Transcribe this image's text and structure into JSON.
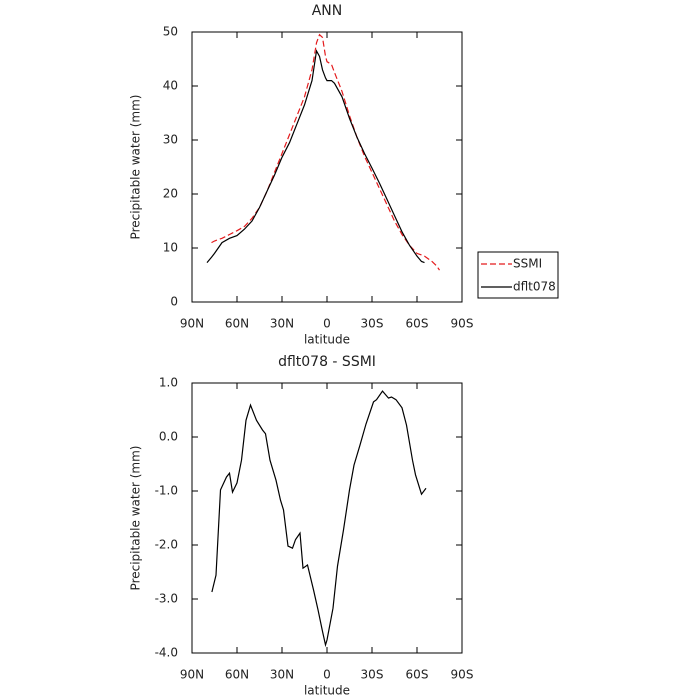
{
  "chart_data": [
    {
      "type": "line",
      "title": "ANN",
      "xlabel": "latitude",
      "ylabel": "Precipitable water (mm)",
      "x": [
        80,
        77,
        75,
        70,
        65,
        60,
        55,
        50,
        45,
        40,
        35,
        30,
        25,
        20,
        15,
        10,
        7,
        5,
        3,
        1,
        0,
        -3,
        -5,
        -10,
        -15,
        -20,
        -25,
        -30,
        -35,
        -40,
        -45,
        -50,
        -55,
        -60,
        -63,
        -65,
        -70,
        -73,
        -75
      ],
      "series": [
        {
          "name": "SSMI",
          "color": "#e41a1c",
          "linestyle": "dashed",
          "values": [
            null,
            11,
            11.3,
            11.8,
            12.5,
            13.2,
            14,
            15.5,
            17.5,
            20.5,
            24,
            27.5,
            31,
            34.5,
            38,
            43,
            48,
            49.5,
            49,
            45.5,
            44.5,
            44,
            42.5,
            39,
            34.5,
            30.5,
            27,
            24,
            21,
            18,
            15,
            12.5,
            10.5,
            9,
            8.7,
            8.5,
            7.5,
            6.7,
            5.9
          ]
        },
        {
          "name": "dflt078",
          "color": "#000000",
          "linestyle": "solid",
          "values": [
            7.3,
            8.3,
            9,
            11,
            11.8,
            12.3,
            13.5,
            15,
            17.5,
            20.5,
            23.5,
            26.8,
            29.5,
            33,
            36.5,
            41,
            46.5,
            45.5,
            43,
            41.5,
            41,
            41,
            40.5,
            38,
            34,
            30.5,
            27.5,
            24.8,
            22,
            19,
            16,
            13,
            10.5,
            8.5,
            7.5,
            7.3,
            null,
            null,
            null
          ]
        }
      ],
      "xlim": [
        90,
        -90
      ],
      "xticks": [
        {
          "value": 90,
          "label": "90N"
        },
        {
          "value": 60,
          "label": "60N"
        },
        {
          "value": 30,
          "label": "30N"
        },
        0,
        {
          "value": -30,
          "label": "30S"
        },
        {
          "value": -60,
          "label": "60S"
        },
        {
          "value": -90,
          "label": "90S"
        }
      ],
      "ylim": [
        0,
        50
      ],
      "yticks": [
        0,
        10,
        20,
        30,
        40,
        50
      ],
      "legend": "right"
    },
    {
      "type": "line",
      "title": "dflt078 - SSMI",
      "xlabel": "latitude",
      "ylabel": "Precipitable water (mm)",
      "x": [
        76.7,
        74,
        71,
        67,
        65,
        63,
        60,
        57,
        54,
        51,
        47,
        43,
        41,
        38,
        34,
        31,
        29,
        26,
        23,
        21,
        18,
        16,
        13,
        9,
        6,
        3,
        1,
        0,
        -4,
        -7,
        -11,
        -15,
        -18,
        -22,
        -26,
        -31,
        -33,
        -37,
        -41,
        -43,
        -46,
        -50,
        -53,
        -57,
        -59,
        -63,
        -66
      ],
      "values": [
        -2.87,
        -2.56,
        -0.98,
        -0.74,
        -0.67,
        -1.02,
        -0.85,
        -0.43,
        0.31,
        0.59,
        0.31,
        0.13,
        0.06,
        -0.43,
        -0.8,
        -1.17,
        -1.35,
        -2.02,
        -2.06,
        -1.9,
        -1.78,
        -2.43,
        -2.37,
        -2.83,
        -3.2,
        -3.6,
        -3.85,
        -3.76,
        -3.17,
        -2.39,
        -1.72,
        -0.98,
        -0.52,
        -0.15,
        0.24,
        0.65,
        0.69,
        0.85,
        0.72,
        0.74,
        0.69,
        0.54,
        0.22,
        -0.43,
        -0.7,
        -1.06,
        -0.95
      ],
      "color": "#000000",
      "xlim": [
        90,
        -90
      ],
      "xticks": [
        {
          "value": 90,
          "label": "90N"
        },
        {
          "value": 60,
          "label": "60N"
        },
        {
          "value": 30,
          "label": "30N"
        },
        0,
        {
          "value": -30,
          "label": "30S"
        },
        {
          "value": -60,
          "label": "60S"
        },
        {
          "value": -90,
          "label": "90S"
        }
      ],
      "ylim": [
        -4,
        1
      ],
      "yticks": [
        {
          "value": 1,
          "label": "1.0"
        },
        {
          "value": 0,
          "label": "0.0"
        },
        {
          "value": -1,
          "label": "-1.0"
        },
        {
          "value": -2,
          "label": "-2.0"
        },
        {
          "value": -3,
          "label": "-3.0"
        },
        {
          "value": -4,
          "label": "-4.0"
        }
      ]
    }
  ]
}
